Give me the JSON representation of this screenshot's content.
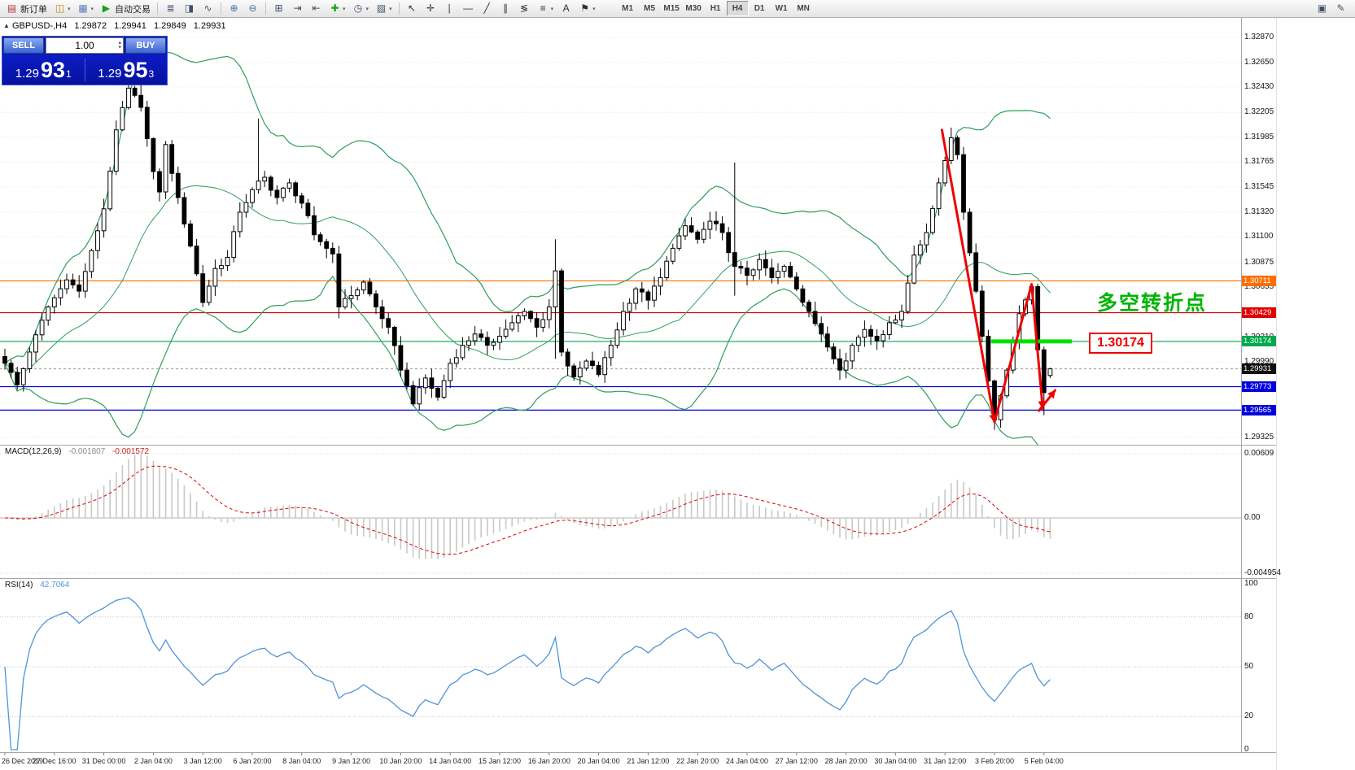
{
  "toolbar": {
    "groups": [
      {
        "items": [
          {
            "name": "new-order",
            "glyph": "▤",
            "glyph_color": "#b43c3c",
            "label": "新订单"
          },
          {
            "name": "new-chart",
            "glyph": "◫",
            "glyph_color": "#b8860b",
            "dropdown": true
          },
          {
            "name": "profiles",
            "glyph": "▦",
            "glyph_color": "#5f7fc0",
            "dropdown": true
          },
          {
            "name": "autotrading",
            "glyph": "▶",
            "glyph_color": "#18a018",
            "label": "自动交易"
          }
        ]
      },
      {
        "items": [
          {
            "name": "bar-chart",
            "glyph": "≣",
            "glyph_color": "#40506a"
          },
          {
            "name": "candlestick-chart",
            "glyph": "◨",
            "glyph_color": "#40506a"
          },
          {
            "name": "line-chart",
            "glyph": "∿",
            "glyph_color": "#40506a"
          }
        ]
      },
      {
        "items": [
          {
            "name": "zoom-in",
            "glyph": "⊕",
            "glyph_color": "#3a6ea5"
          },
          {
            "name": "zoom-out",
            "glyph": "⊖",
            "glyph_color": "#3a6ea5"
          }
        ]
      },
      {
        "items": [
          {
            "name": "tile-windows",
            "glyph": "⊞",
            "glyph_color": "#40506a"
          },
          {
            "name": "auto-scroll",
            "glyph": "⇥",
            "glyph_color": "#40506a"
          },
          {
            "name": "chart-shift",
            "glyph": "⇤",
            "glyph_color": "#40506a"
          },
          {
            "name": "indicators",
            "glyph": "✚",
            "glyph_color": "#18a018",
            "dropdown": true
          },
          {
            "name": "periods",
            "glyph": "◷",
            "glyph_color": "#40506a",
            "dropdown": true
          },
          {
            "name": "templates",
            "glyph": "▨",
            "glyph_color": "#40506a",
            "dropdown": true
          }
        ]
      },
      {
        "items": [
          {
            "name": "cursor",
            "glyph": "↖",
            "glyph_color": "#303030"
          },
          {
            "name": "crosshair",
            "glyph": "✛",
            "glyph_color": "#303030"
          },
          {
            "name": "vertical-line",
            "glyph": "∣",
            "glyph_color": "#303030"
          },
          {
            "name": "horizontal-line",
            "glyph": "―",
            "glyph_color": "#303030"
          },
          {
            "name": "trendline",
            "glyph": "╱",
            "glyph_color": "#303030"
          },
          {
            "name": "equidistant-channel",
            "glyph": "∥",
            "glyph_color": "#303030"
          },
          {
            "name": "fibonacci",
            "glyph": "≶",
            "glyph_color": "#303030"
          },
          {
            "name": "shapes",
            "glyph": "≡",
            "glyph_color": "#303030",
            "dropdown": true
          },
          {
            "name": "text",
            "glyph": "A",
            "glyph_color": "#303030"
          },
          {
            "name": "arrow-label",
            "glyph": "⚑",
            "glyph_color": "#303030",
            "dropdown": true
          }
        ]
      }
    ],
    "timeframes": [
      {
        "label": "M1"
      },
      {
        "label": "M5"
      },
      {
        "label": "M15"
      },
      {
        "label": "M30"
      },
      {
        "label": "H1"
      },
      {
        "label": "H4",
        "active": true
      },
      {
        "label": "D1"
      },
      {
        "label": "W1"
      },
      {
        "label": "MN"
      }
    ],
    "right_items": [
      {
        "name": "window-list",
        "glyph": "▣",
        "glyph_color": "#40506a"
      },
      {
        "name": "metaeditor",
        "glyph": "✎",
        "glyph_color": "#40506a"
      }
    ]
  },
  "chart": {
    "symbol_info": {
      "toggle_glyph": "▲",
      "symbol": "GBPUSD-,H4",
      "open": "1.29872",
      "high": "1.29941",
      "low": "1.29849",
      "close": "1.29931"
    }
  },
  "trade_panel": {
    "sell_label": "SELL",
    "buy_label": "BUY",
    "volume": "1.00",
    "spin_up": "▴",
    "spin_down": "▾",
    "sell_price": {
      "base": "1.29",
      "pips": "93",
      "pt": "1"
    },
    "buy_price": {
      "base": "1.29",
      "pips": "95",
      "pt": "3"
    }
  },
  "price_axis": {
    "grid_labels": [
      "1.32870",
      "1.32650",
      "1.32430",
      "1.32205",
      "1.31985",
      "1.31765",
      "1.31545",
      "1.31320",
      "1.31100",
      "1.30875",
      "1.30655",
      "1.30210",
      "1.29990",
      "1.29325"
    ],
    "tags": [
      {
        "name": "resistance-tag",
        "text": "1.30711",
        "color": "#ff6d00"
      },
      {
        "name": "mid-resistance-tag",
        "text": "1.30429",
        "color": "#dd0000"
      },
      {
        "name": "pivot-tag",
        "text": "1.30174",
        "color": "#00a84f"
      },
      {
        "name": "current-price-tag",
        "text": "1.29931",
        "color": "#101010"
      },
      {
        "name": "support1-tag",
        "text": "1.29773",
        "color": "#0000dd"
      },
      {
        "name": "support2-tag",
        "text": "1.29565",
        "color": "#0000dd"
      }
    ]
  },
  "annotations": {
    "turning_point_text": "多空转折点",
    "turning_point_color": "#00b400",
    "level_label": "1.30174",
    "level_label_color": "#f00000"
  },
  "macd_panel": {
    "label": "MACD(12,26,9)",
    "value1": "-0.001807",
    "value2": "-0.001572",
    "axis_labels": [
      "0.00609",
      "0.00",
      "-0.004954"
    ]
  },
  "rsi_panel": {
    "label": "RSI(14)",
    "value": "42.7064",
    "axis_labels": [
      "100",
      "80",
      "50",
      "20",
      "0"
    ],
    "levels": [
      80,
      50,
      20
    ]
  },
  "time_axis": {
    "labels": [
      "26 Dec 2019",
      "27 Dec 16:00",
      "31 Dec 00:00",
      "2 Jan 04:00",
      "3 Jan 12:00",
      "6 Jan 20:00",
      "8 Jan 04:00",
      "9 Jan 12:00",
      "10 Jan 20:00",
      "14 Jan 04:00",
      "15 Jan 12:00",
      "16 Jan 20:00",
      "20 Jan 04:00",
      "21 Jan 12:00",
      "22 Jan 20:00",
      "24 Jan 04:00",
      "27 Jan 12:00",
      "28 Jan 20:00",
      "30 Jan 04:00",
      "31 Jan 12:00",
      "3 Feb 20:00",
      "5 Feb 04:00"
    ]
  },
  "chart_data": {
    "type": "candlestick",
    "symbol": "GBPUSD-",
    "timeframe": "H4",
    "last_ohlc": {
      "open": 1.29872,
      "high": 1.29941,
      "low": 1.29849,
      "close": 1.29931
    },
    "bars": 170,
    "price_range_visible": [
      1.2926,
      1.3304
    ],
    "close_anchors": [
      [
        0,
        1.2998
      ],
      [
        2,
        1.2979
      ],
      [
        4,
        1.3008
      ],
      [
        7,
        1.3048
      ],
      [
        10,
        1.3072
      ],
      [
        12,
        1.3062
      ],
      [
        14,
        1.3098
      ],
      [
        16,
        1.3135
      ],
      [
        18,
        1.3205
      ],
      [
        20,
        1.3242
      ],
      [
        22,
        1.3225
      ],
      [
        24,
        1.3168
      ],
      [
        25,
        1.315
      ],
      [
        26,
        1.3192
      ],
      [
        28,
        1.3145
      ],
      [
        30,
        1.3102
      ],
      [
        32,
        1.3052
      ],
      [
        34,
        1.3082
      ],
      [
        36,
        1.3092
      ],
      [
        38,
        1.3132
      ],
      [
        40,
        1.3152
      ],
      [
        42,
        1.3163
      ],
      [
        44,
        1.3145
      ],
      [
        46,
        1.3158
      ],
      [
        48,
        1.314
      ],
      [
        50,
        1.3112
      ],
      [
        52,
        1.31
      ],
      [
        53,
        1.3095
      ],
      [
        54,
        1.3048
      ],
      [
        56,
        1.3058
      ],
      [
        58,
        1.307
      ],
      [
        60,
        1.3048
      ],
      [
        62,
        1.303
      ],
      [
        64,
        1.2992
      ],
      [
        66,
        1.2962
      ],
      [
        68,
        1.2985
      ],
      [
        70,
        1.2968
      ],
      [
        72,
        1.2998
      ],
      [
        74,
        1.3014
      ],
      [
        76,
        1.3024
      ],
      [
        78,
        1.3014
      ],
      [
        80,
        1.3022
      ],
      [
        82,
        1.3034
      ],
      [
        84,
        1.3044
      ],
      [
        86,
        1.303
      ],
      [
        88,
        1.3048
      ],
      [
        89,
        1.308
      ],
      [
        90,
        1.3008
      ],
      [
        92,
        1.2986
      ],
      [
        94,
        1.3
      ],
      [
        96,
        1.2988
      ],
      [
        98,
        1.3014
      ],
      [
        100,
        1.3044
      ],
      [
        102,
        1.3064
      ],
      [
        104,
        1.3054
      ],
      [
        106,
        1.3074
      ],
      [
        108,
        1.31
      ],
      [
        110,
        1.312
      ],
      [
        112,
        1.3108
      ],
      [
        114,
        1.3124
      ],
      [
        116,
        1.3114
      ],
      [
        118,
        1.3084
      ],
      [
        120,
        1.3076
      ],
      [
        122,
        1.309
      ],
      [
        124,
        1.3074
      ],
      [
        126,
        1.3084
      ],
      [
        128,
        1.3064
      ],
      [
        130,
        1.3044
      ],
      [
        132,
        1.3024
      ],
      [
        134,
        1.3002
      ],
      [
        135,
        1.2992
      ],
      [
        137,
        1.3014
      ],
      [
        139,
        1.3028
      ],
      [
        141,
        1.3018
      ],
      [
        143,
        1.3034
      ],
      [
        145,
        1.3044
      ],
      [
        147,
        1.3094
      ],
      [
        149,
        1.3114
      ],
      [
        151,
        1.3158
      ],
      [
        153,
        1.3198
      ],
      [
        154,
        1.3183
      ],
      [
        155,
        1.3132
      ],
      [
        157,
        1.3062
      ],
      [
        158,
        1.3022
      ],
      [
        160,
        1.2948
      ],
      [
        162,
        1.2992
      ],
      [
        164,
        1.3042
      ],
      [
        166,
        1.3066
      ],
      [
        167,
        1.301
      ],
      [
        168,
        1.2972
      ],
      [
        169,
        1.29931
      ]
    ],
    "wick_overrides": {
      "20": {
        "high": 1.3256
      },
      "41": {
        "high": 1.3215
      },
      "54": {
        "low": 1.3038
      },
      "89": {
        "high": 1.3108,
        "low": 1.3002
      },
      "118": {
        "high": 1.3176,
        "low": 1.3058
      },
      "153": {
        "high": 1.3207
      },
      "160": {
        "low": 1.2939
      },
      "168": {
        "low": 1.2952
      },
      "169": {
        "high": 1.29941,
        "low": 1.29849
      }
    },
    "open_overrides": {
      "169": 1.29872
    },
    "horizontal_lines": [
      {
        "price": 1.30711,
        "color": "#ff6d00"
      },
      {
        "price": 1.30429,
        "color": "#dd0000"
      },
      {
        "price": 1.30174,
        "color": "#00a84f"
      },
      {
        "price": 1.29931,
        "color": "#9a9a9a",
        "dash": true
      },
      {
        "price": 1.29773,
        "color": "#0000dd"
      },
      {
        "price": 1.29565,
        "color": "#0000dd"
      }
    ],
    "bollinger": {
      "period": 20,
      "deviation": 2,
      "color": "#2e9e5a"
    },
    "macd": {
      "fast": 12,
      "slow": 26,
      "signal": 9,
      "current": [
        -0.001807,
        -0.001572
      ]
    },
    "rsi": {
      "period": 14,
      "current": 42.7064
    },
    "drawn_arrows": [
      {
        "points": [
          [
            151.5,
            1.3205
          ],
          [
            160,
            1.2946
          ]
        ],
        "arrow_end": true
      },
      {
        "points": [
          [
            160,
            1.2946
          ],
          [
            166,
            1.3068
          ]
        ],
        "arrow_end": false
      },
      {
        "points": [
          [
            166,
            1.3068
          ],
          [
            167.8,
            1.2958
          ]
        ],
        "arrow_end": true
      },
      {
        "points": [
          [
            167.2,
            1.2956
          ],
          [
            169.8,
            1.2974
          ]
        ],
        "arrow_end": true
      }
    ],
    "support_segment": {
      "from_bar": 159.5,
      "to_bar": 172.5,
      "price": 1.30174,
      "color": "#00e000"
    }
  }
}
